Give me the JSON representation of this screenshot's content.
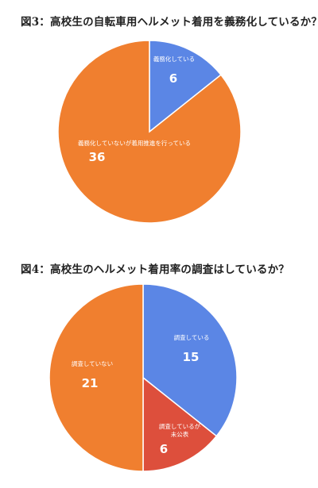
{
  "chart_data": [
    {
      "type": "pie",
      "title": "図3：高校生の自転車用ヘルメット着用を義務化しているか？",
      "slices": [
        {
          "label": "義務化している",
          "value": 6,
          "color": "#5B86E5"
        },
        {
          "label": "義務化していないが着用推進を行っている",
          "value": 36,
          "color": "#F07F2F"
        }
      ]
    },
    {
      "type": "pie",
      "title": "図4：高校生のヘルメット着用率の調査はしているか？",
      "slices": [
        {
          "label": "調査している",
          "value": 15,
          "color": "#5B86E5"
        },
        {
          "label": "調査しているが\n未公表",
          "value": 6,
          "color": "#DD4F3C"
        },
        {
          "label": "調査していない",
          "value": 21,
          "color": "#F07F2F"
        }
      ]
    }
  ]
}
